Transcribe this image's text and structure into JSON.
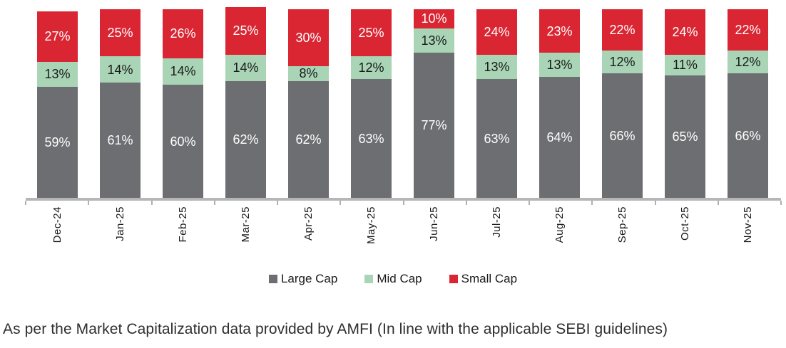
{
  "chart_data": {
    "type": "bar",
    "variant": "stacked-percent-column",
    "title": "",
    "xlabel": "",
    "ylabel": "",
    "ylim": [
      0,
      100
    ],
    "grid": false,
    "legend_position": "bottom",
    "value_suffix": "%",
    "axis_color": "#b6b6b6",
    "categories": [
      "Dec-24",
      "Jan-25",
      "Feb-25",
      "Mar-25",
      "Apr-25",
      "May-25",
      "Jun-25",
      "Jul-25",
      "Aug-25",
      "Sep-25",
      "Oct-25",
      "Nov-25"
    ],
    "series": [
      {
        "name": "Large Cap",
        "color": "#6d6e71",
        "label_color": "#ffffff",
        "values": [
          59,
          61,
          60,
          62,
          62,
          63,
          77,
          63,
          64,
          66,
          65,
          66
        ]
      },
      {
        "name": "Mid Cap",
        "color": "#a9d4b6",
        "label_color": "#1a1a1a",
        "values": [
          13,
          14,
          14,
          14,
          8,
          12,
          13,
          13,
          13,
          12,
          11,
          12
        ]
      },
      {
        "name": "Small Cap",
        "color": "#da2532",
        "label_color": "#ffffff",
        "values": [
          27,
          25,
          26,
          25,
          30,
          25,
          10,
          24,
          23,
          22,
          24,
          22
        ]
      }
    ]
  },
  "footnote": {
    "text": "As per the Market Capitalization data provided by AMFI (In line with the applicable SEBI guidelines)"
  }
}
